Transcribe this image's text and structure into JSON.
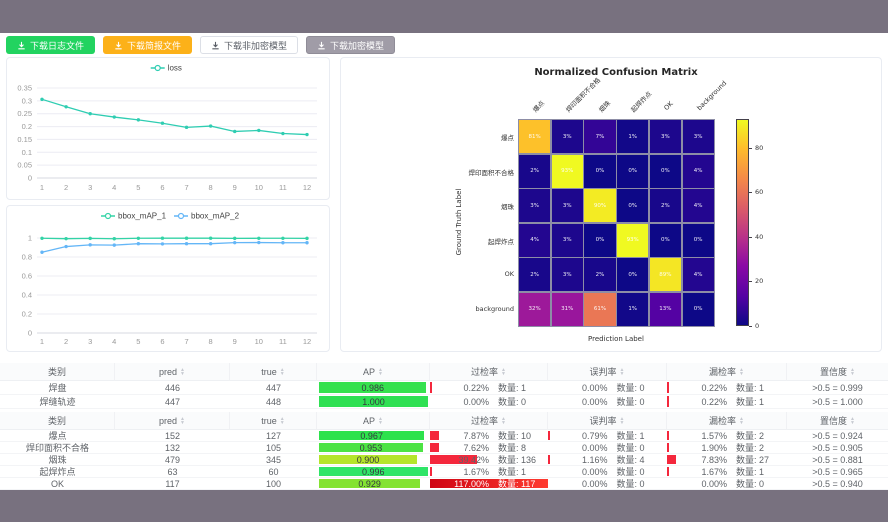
{
  "toolbar": {
    "buttons": [
      {
        "label": "下载日志文件",
        "style": "green"
      },
      {
        "label": "下载简报文件",
        "style": "orange"
      },
      {
        "label": "下载非加密模型",
        "style": "plain"
      },
      {
        "label": "下载加密模型",
        "style": "gray"
      }
    ]
  },
  "chart_data": [
    {
      "id": "loss",
      "type": "line",
      "x": [
        1,
        2,
        3,
        4,
        5,
        6,
        7,
        8,
        9,
        10,
        11,
        12
      ],
      "yticks": [
        0,
        0.05,
        0.1,
        0.15,
        0.2,
        0.25,
        0.3,
        0.35
      ],
      "ylim": [
        0,
        0.35
      ],
      "legend_position": "top",
      "grid": true,
      "series": [
        {
          "name": "loss",
          "color": "#2fcdb2",
          "values": [
            0.306,
            0.277,
            0.25,
            0.237,
            0.226,
            0.213,
            0.197,
            0.202,
            0.181,
            0.185,
            0.173,
            0.169
          ]
        }
      ]
    },
    {
      "id": "map",
      "type": "line",
      "x": [
        1,
        2,
        3,
        4,
        5,
        6,
        7,
        8,
        9,
        10,
        11,
        12
      ],
      "yticks": [
        0,
        0.2,
        0.4,
        0.6,
        0.8,
        1
      ],
      "ylim": [
        0,
        1
      ],
      "legend_position": "top",
      "grid": true,
      "series": [
        {
          "name": "bbox_mAP_1",
          "color": "#33d3a6",
          "values": [
            0.997,
            0.993,
            0.996,
            0.992,
            0.997,
            0.998,
            0.998,
            0.998,
            0.996,
            0.997,
            0.997,
            0.996
          ]
        },
        {
          "name": "bbox_mAP_2",
          "color": "#64b6f7",
          "values": [
            0.85,
            0.91,
            0.928,
            0.925,
            0.94,
            0.938,
            0.94,
            0.94,
            0.951,
            0.952,
            0.95,
            0.95
          ]
        }
      ]
    },
    {
      "id": "confusion",
      "type": "heatmap",
      "title": "Normalized Confusion Matrix",
      "xlabel": "Prediction Label",
      "ylabel": "Ground Truth Label",
      "classes": [
        "爆点",
        "焊印面积不合格",
        "烟珠",
        "起焊炸点",
        "OK",
        "background"
      ],
      "values": [
        [
          81,
          3,
          7,
          1,
          3,
          3
        ],
        [
          2,
          93,
          0,
          0,
          0,
          4
        ],
        [
          3,
          3,
          90,
          0,
          2,
          4
        ],
        [
          4,
          3,
          0,
          93,
          0,
          0
        ],
        [
          2,
          3,
          2,
          0,
          89,
          4
        ],
        [
          32,
          31,
          61,
          1,
          13,
          0
        ]
      ],
      "unit": "%",
      "vmax": 93,
      "colorbar_ticks": [
        0,
        20,
        40,
        60,
        80
      ]
    }
  ],
  "tables": {
    "columns": [
      {
        "label": "类别",
        "sortable": false
      },
      {
        "label": "pred",
        "sortable": true
      },
      {
        "label": "true",
        "sortable": true
      },
      {
        "label": "AP",
        "sortable": true
      },
      {
        "label": "过检率",
        "sortable": true
      },
      {
        "label": "误判率",
        "sortable": true
      },
      {
        "label": "漏检率",
        "sortable": true
      },
      {
        "label": "置信度",
        "sortable": true
      }
    ],
    "quantity_label": "数量",
    "table1": {
      "rows": [
        {
          "cls": "焊盘",
          "pred": "446",
          "true": "447",
          "ap": "0.986",
          "ap_color": "#35e14e",
          "guo": {
            "pct": "0.22%",
            "count": "1"
          },
          "wu": {
            "pct": "0.00%",
            "count": "0"
          },
          "lou": {
            "pct": "0.22%",
            "count": "1"
          },
          "conf": ">0.5 = 0.999"
        },
        {
          "cls": "焊缝轨迹",
          "pred": "447",
          "true": "448",
          "ap": "1.000",
          "ap_color": "#2fe053",
          "guo": {
            "pct": "0.00%",
            "count": "0"
          },
          "wu": {
            "pct": "0.00%",
            "count": "0"
          },
          "lou": {
            "pct": "0.22%",
            "count": "1"
          },
          "conf": ">0.5 = 1.000"
        }
      ]
    },
    "table2": {
      "rows": [
        {
          "cls": "爆点",
          "pred": "152",
          "true": "127",
          "ap": "0.967",
          "ap_color": "#2de24c",
          "guo": {
            "pct": "7.87%",
            "count": "10"
          },
          "wu": {
            "pct": "0.79%",
            "count": "1"
          },
          "lou": {
            "pct": "1.57%",
            "count": "2"
          },
          "conf": ">0.5 = 0.924"
        },
        {
          "cls": "焊印面积不合格",
          "pred": "132",
          "true": "105",
          "ap": "0.953",
          "ap_color": "#4ce343",
          "guo": {
            "pct": "7.62%",
            "count": "8"
          },
          "wu": {
            "pct": "0.00%",
            "count": "0"
          },
          "lou": {
            "pct": "1.90%",
            "count": "2"
          },
          "conf": ">0.5 = 0.905"
        },
        {
          "cls": "烟珠",
          "pred": "479",
          "true": "345",
          "ap": "0.900",
          "ap_color": "#b5e52b",
          "guo": {
            "pct": "39.42%",
            "count": "136"
          },
          "wu": {
            "pct": "1.16%",
            "count": "4"
          },
          "lou": {
            "pct": "7.83%",
            "count": "27"
          },
          "conf": ">0.5 = 0.881"
        },
        {
          "cls": "起焊炸点",
          "pred": "63",
          "true": "60",
          "ap": "0.996",
          "ap_color": "#2ee567",
          "guo": {
            "pct": "1.67%",
            "count": "1"
          },
          "wu": {
            "pct": "0.00%",
            "count": "0"
          },
          "lou": {
            "pct": "1.67%",
            "count": "1"
          },
          "conf": ">0.5 = 0.965"
        },
        {
          "cls": "OK",
          "pred": "117",
          "true": "100",
          "ap": "0.929",
          "ap_color": "#84e332",
          "guo": {
            "pct": "117.00%",
            "count": "117",
            "full": true
          },
          "wu": {
            "pct": "0.00%",
            "count": "0"
          },
          "lou": {
            "pct": "0.00%",
            "count": "0"
          },
          "conf": ">0.5 = 0.940"
        }
      ]
    }
  }
}
